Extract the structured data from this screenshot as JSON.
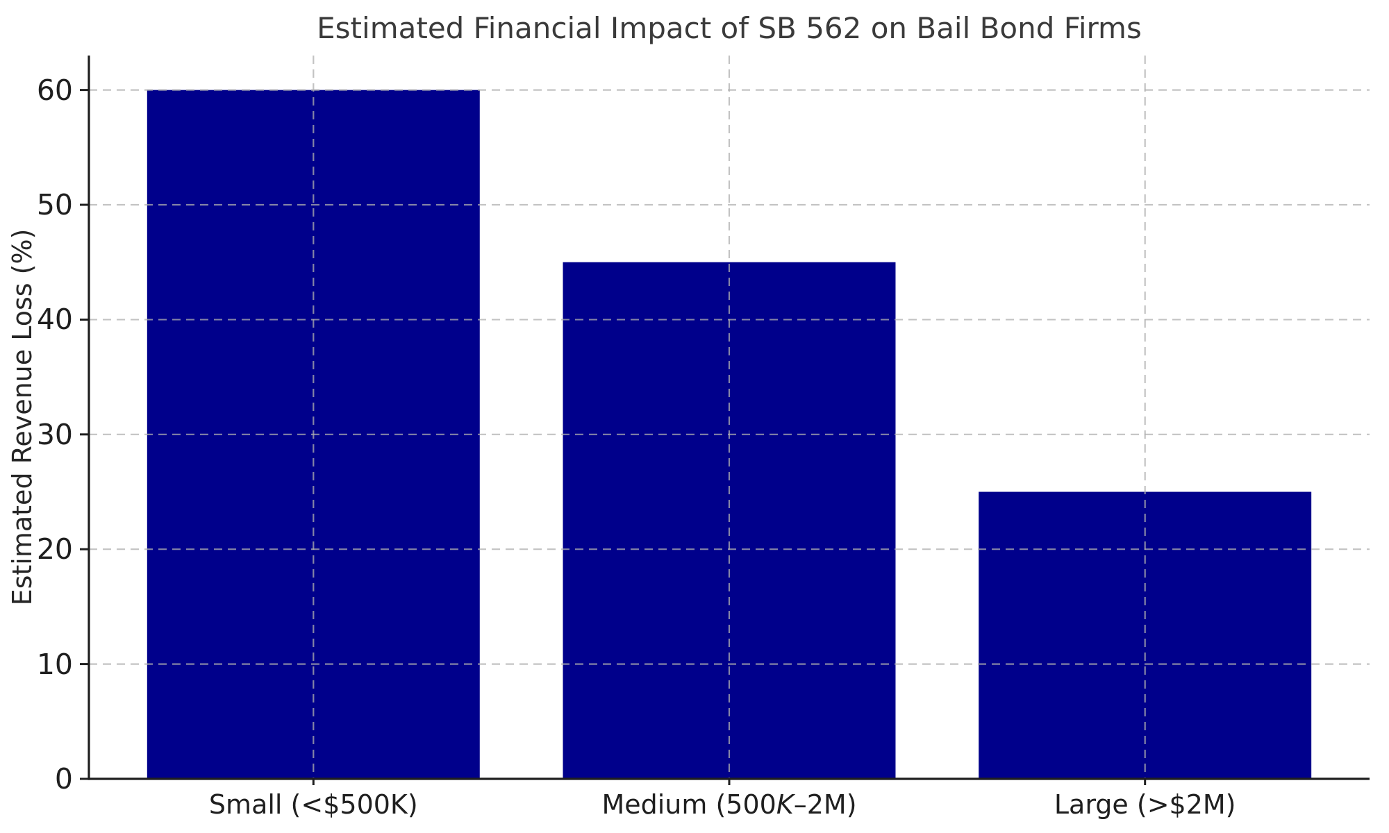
{
  "chart_data": {
    "type": "bar",
    "title": "Estimated Financial Impact of SB 562 on Bail Bond Firms",
    "xlabel": "",
    "ylabel": "Estimated Revenue Loss (%)",
    "categories": [
      "Small (<$500K)",
      "Medium (500K–2M)",
      "Large (>$2M)"
    ],
    "categories_rich": [
      [
        {
          "text": "Small (<$500K)",
          "italic": false
        }
      ],
      [
        {
          "text": "Medium (500",
          "italic": false
        },
        {
          "text": "K",
          "italic": true
        },
        {
          "text": "–2M)",
          "italic": false
        }
      ],
      [
        {
          "text": "Large (>$2M)",
          "italic": false
        }
      ]
    ],
    "values": [
      60,
      45,
      25
    ],
    "yticks": [
      0,
      10,
      20,
      30,
      40,
      50,
      60
    ],
    "ylim": [
      0,
      63
    ],
    "xlim": [
      -0.54,
      2.54
    ],
    "bar_width": 0.8,
    "bar_color": "#00008B",
    "grid": {
      "show": true,
      "axis": "both",
      "linestyle": "dashed",
      "color": "#b0b0b0",
      "opacity": 0.75,
      "drawn_over_bars": true
    },
    "axis_color": "#1f1f1f",
    "text_color": "#262626",
    "legend_position": "none"
  }
}
